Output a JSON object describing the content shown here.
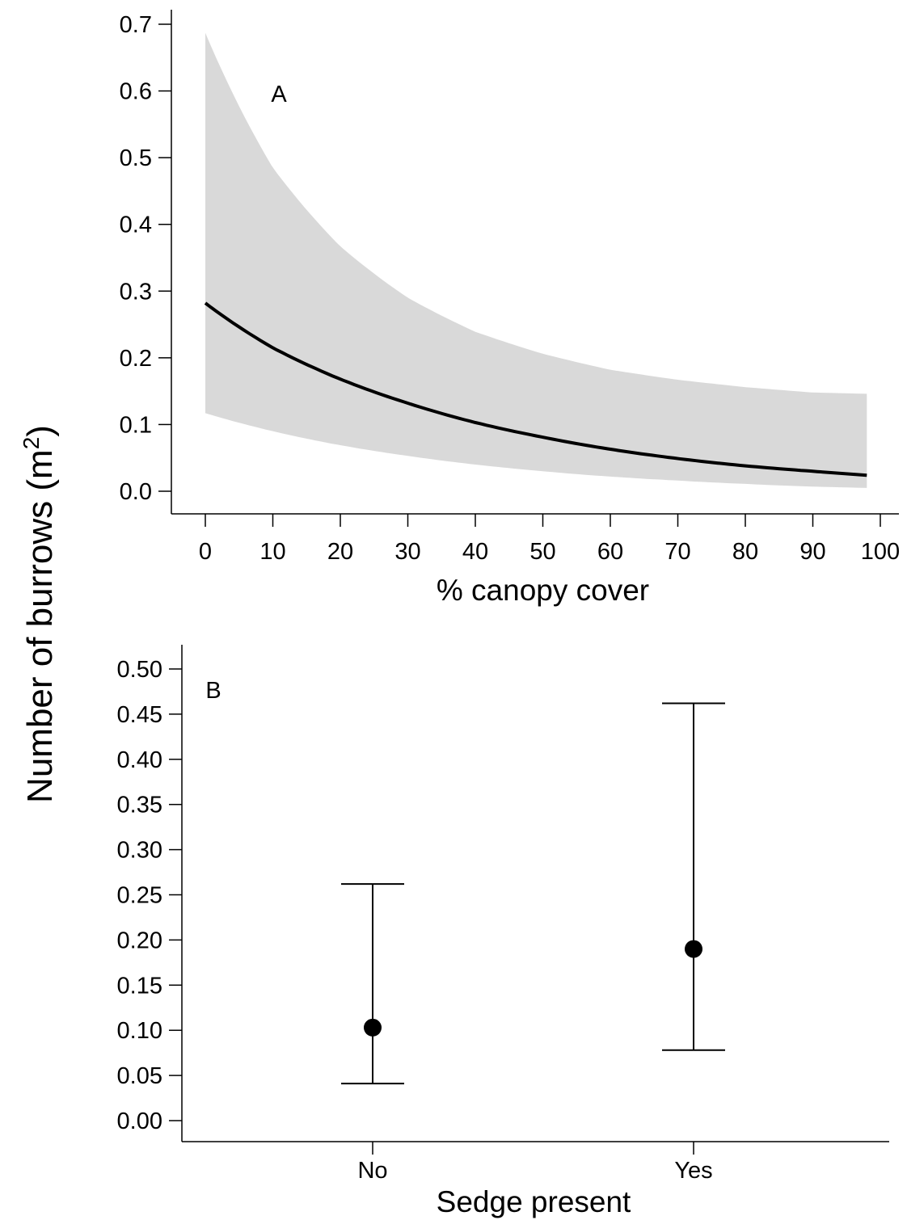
{
  "ylabel": {
    "main": "Number of burrows  (m",
    "superscript": "2",
    "close": ")"
  },
  "chart_data": [
    {
      "type": "line",
      "panel_label": "A",
      "xlabel": "% canopy cover",
      "ylabel": "Number of burrows  (m2)",
      "xlim": [
        0,
        100
      ],
      "ylim": [
        0,
        0.7
      ],
      "x_ticks": [
        "0",
        "10",
        "20",
        "30",
        "40",
        "50",
        "60",
        "70",
        "80",
        "90",
        "100"
      ],
      "y_ticks": [
        "0.0",
        "0.1",
        "0.2",
        "0.3",
        "0.4",
        "0.5",
        "0.6",
        "0.7"
      ],
      "grid": false,
      "series": [
        {
          "x": [
            0,
            10,
            20,
            30,
            40,
            50,
            60,
            70,
            80,
            90,
            98
          ],
          "y": [
            0.282,
            0.215,
            0.168,
            0.132,
            0.103,
            0.081,
            0.063,
            0.049,
            0.038,
            0.03,
            0.024
          ],
          "ci_lower": [
            0.117,
            0.09,
            0.069,
            0.053,
            0.04,
            0.03,
            0.022,
            0.016,
            0.011,
            0.007,
            0.005
          ],
          "ci_upper": [
            0.687,
            0.485,
            0.367,
            0.29,
            0.239,
            0.206,
            0.182,
            0.167,
            0.156,
            0.148,
            0.146
          ],
          "color": "#000000",
          "band_color": "#d9d9d9"
        }
      ]
    },
    {
      "type": "scatter",
      "panel_label": "B",
      "xlabel": "Sedge present",
      "ylabel": "Number of burrows  (m2)",
      "categories": [
        "No",
        "Yes"
      ],
      "ylim": [
        0,
        0.5
      ],
      "y_ticks": [
        "0.00",
        "0.05",
        "0.10",
        "0.15",
        "0.20",
        "0.25",
        "0.30",
        "0.35",
        "0.40",
        "0.45",
        "0.50"
      ],
      "grid": false,
      "values": [
        0.103,
        0.19
      ],
      "error_lower": [
        0.041,
        0.078
      ],
      "error_upper": [
        0.262,
        0.462
      ],
      "color": "#000000"
    }
  ]
}
